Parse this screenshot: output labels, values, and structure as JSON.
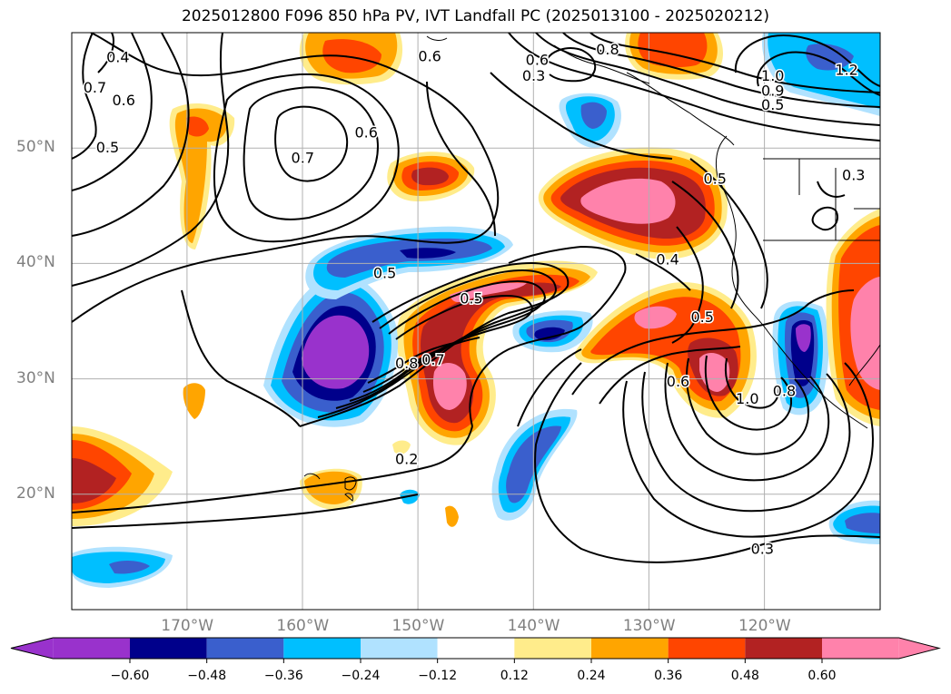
{
  "title": "2025012800 F096 850 hPa PV, IVT Landfall PC (2025013100 - 2025020212)",
  "map": {
    "lat_labels": [
      {
        "text": "50°N",
        "lat": 50
      },
      {
        "text": "40°N",
        "lat": 40
      },
      {
        "text": "30°N",
        "lat": 30
      },
      {
        "text": "20°N",
        "lat": 20
      }
    ],
    "lon_labels": [
      {
        "text": "170°W",
        "lon": -170
      },
      {
        "text": "160°W",
        "lon": -160
      },
      {
        "text": "150°W",
        "lon": -150
      },
      {
        "text": "140°W",
        "lon": -140
      },
      {
        "text": "130°W",
        "lon": -130
      },
      {
        "text": "120°W",
        "lon": -120
      }
    ],
    "extent": {
      "lon_min": -180,
      "lon_max": -110,
      "lat_min": 10,
      "lat_max": 60
    },
    "contour_labels": [
      {
        "text": "0.4",
        "lon": -176.0,
        "lat": 57.9
      },
      {
        "text": "0.6",
        "lon": -149.0,
        "lat": 58.0
      },
      {
        "text": "0.7",
        "lon": -178.0,
        "lat": 55.3
      },
      {
        "text": "0.6",
        "lon": -175.5,
        "lat": 54.2
      },
      {
        "text": "0.5",
        "lon": -176.9,
        "lat": 50.1
      },
      {
        "text": "0.7",
        "lon": -160.0,
        "lat": 49.2
      },
      {
        "text": "0.6",
        "lon": -154.5,
        "lat": 51.4
      },
      {
        "text": "0.3",
        "lon": -140.0,
        "lat": 56.3
      },
      {
        "text": "0.6",
        "lon": -139.7,
        "lat": 57.7
      },
      {
        "text": "0.8",
        "lon": -133.6,
        "lat": 58.6
      },
      {
        "text": "1.0",
        "lon": -119.3,
        "lat": 56.3
      },
      {
        "text": "0.9",
        "lon": -119.3,
        "lat": 55.0
      },
      {
        "text": "0.5",
        "lon": -119.3,
        "lat": 53.8
      },
      {
        "text": "1.2",
        "lon": -112.9,
        "lat": 56.8
      },
      {
        "text": "0.5",
        "lon": -124.3,
        "lat": 47.4
      },
      {
        "text": "0.3",
        "lon": -112.3,
        "lat": 47.7
      },
      {
        "text": "0.5",
        "lon": -152.9,
        "lat": 39.2
      },
      {
        "text": "0.5",
        "lon": -145.4,
        "lat": 37.0
      },
      {
        "text": "0.4",
        "lon": -128.4,
        "lat": 40.4
      },
      {
        "text": "0.5",
        "lon": -125.4,
        "lat": 35.4
      },
      {
        "text": "0.8",
        "lon": -151.0,
        "lat": 31.4
      },
      {
        "text": "0.7",
        "lon": -148.7,
        "lat": 31.7
      },
      {
        "text": "0.6",
        "lon": -127.5,
        "lat": 29.8
      },
      {
        "text": "1.0",
        "lon": -121.5,
        "lat": 28.3
      },
      {
        "text": "0.8",
        "lon": -118.3,
        "lat": 29.0
      },
      {
        "text": "0.2",
        "lon": -151.0,
        "lat": 23.1
      },
      {
        "text": "0.3",
        "lon": -120.2,
        "lat": 15.3
      }
    ]
  },
  "colorbar": {
    "colors": [
      "#9932cc",
      "#00008b",
      "#3a5fcd",
      "#00bfff",
      "#b0e2ff",
      "#ffffff",
      "#ffec8b",
      "#ffa500",
      "#ff4500",
      "#b22222",
      "#ff82ab"
    ],
    "extend_min_color": "#9932cc",
    "extend_max_color": "#ff82ab",
    "tick_labels": [
      "−0.60",
      "−0.48",
      "−0.36",
      "−0.24",
      "−0.12",
      "0.12",
      "0.24",
      "0.36",
      "0.48",
      "0.60"
    ]
  }
}
